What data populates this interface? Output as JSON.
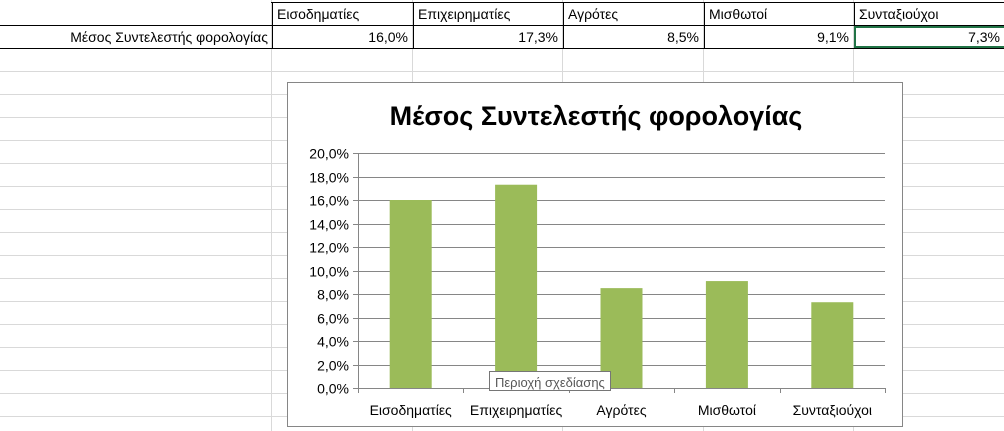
{
  "sheet": {
    "headers": [
      "Εισοδηματίες",
      "Επιχειρηματίες",
      "Αγρότες",
      "Μισθωτοί",
      "Συνταξιούχοι"
    ],
    "row_label": "Μέσος Συντελεστής φορολογίας",
    "values_text": [
      "16,0%",
      "17,3%",
      "8,5%",
      "9,1%",
      "7,3%"
    ]
  },
  "chart_data": {
    "type": "bar",
    "title": "Μέσος Συντελεστής φορολογίας",
    "categories": [
      "Εισοδηματίες",
      "Επιχειρηματίες",
      "Αγρότες",
      "Μισθωτοί",
      "Συνταξιούχοι"
    ],
    "values": [
      16.0,
      17.3,
      8.5,
      9.1,
      7.3
    ],
    "ylim": [
      0,
      20
    ],
    "yticks": [
      0,
      2,
      4,
      6,
      8,
      10,
      12,
      14,
      16,
      18,
      20
    ],
    "ytick_labels": [
      "0,0%",
      "2,0%",
      "4,0%",
      "6,0%",
      "8,0%",
      "10,0%",
      "12,0%",
      "14,0%",
      "16,0%",
      "18,0%",
      "20,0%"
    ],
    "xlabel": "",
    "ylabel": "",
    "grid": true,
    "legend": "none",
    "bar_color": "#9bbb59"
  },
  "tooltip": {
    "text": "Περιοχή σχεδίασης"
  },
  "colors": {
    "selection": "#217346",
    "grid": "#d9d9d9"
  }
}
